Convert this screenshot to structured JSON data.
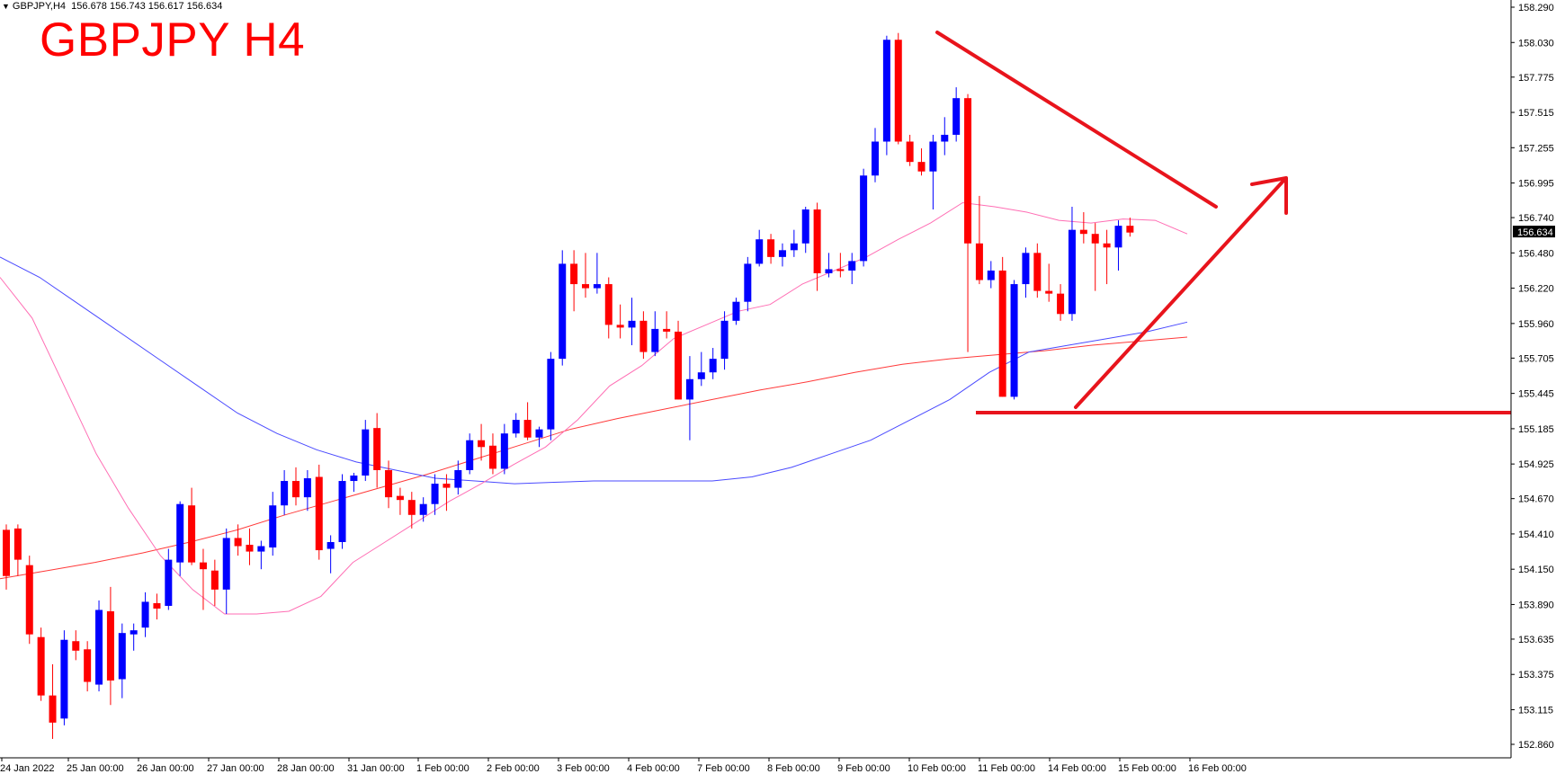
{
  "header": {
    "symbol_line": "GBPJPY,H4",
    "ohlc": "156.678 156.743 156.617 156.634"
  },
  "annotation_title": "GBPJPY H4",
  "colors": {
    "bull": "#0000ff",
    "bear": "#ff0000",
    "ma_fast": "#ff6eb4",
    "ma_mid": "#4a4aff",
    "ma_slow": "#ff3a3a",
    "drawing": "#e8141c",
    "grid": "none"
  },
  "chart_data": {
    "type": "candlestick",
    "title": "GBPJPY H4",
    "symbol": "GBPJPY",
    "timeframe": "H4",
    "grid": false,
    "ylim": [
      152.66,
      158.34
    ],
    "y_ticks": [
      "158.290",
      "158.030",
      "157.775",
      "157.515",
      "157.255",
      "156.995",
      "156.740",
      "156.480",
      "156.220",
      "155.960",
      "155.705",
      "155.445",
      "155.185",
      "154.925",
      "154.670",
      "154.410",
      "154.150",
      "153.890",
      "153.635",
      "153.375",
      "153.115",
      "152.860"
    ],
    "x_ticks": [
      "24 Jan 2022",
      "25 Jan 00:00",
      "26 Jan 00:00",
      "27 Jan 00:00",
      "28 Jan 00:00",
      "31 Jan 00:00",
      "1 Feb 00:00",
      "2 Feb 00:00",
      "3 Feb 00:00",
      "4 Feb 00:00",
      "7 Feb 00:00",
      "8 Feb 00:00",
      "9 Feb 00:00",
      "10 Feb 00:00",
      "11 Feb 00:00",
      "14 Feb 00:00",
      "15 Feb 00:00",
      "16 Feb 00:00"
    ],
    "current_price": "156.634",
    "ohlc": [
      [
        154.44,
        154.48,
        154.0,
        154.1
      ],
      [
        154.45,
        154.48,
        154.1,
        154.22
      ],
      [
        154.18,
        154.25,
        153.6,
        153.67
      ],
      [
        153.65,
        153.72,
        153.18,
        153.22
      ],
      [
        153.22,
        153.45,
        152.9,
        153.02
      ],
      [
        153.05,
        153.7,
        153.0,
        153.63
      ],
      [
        153.62,
        153.7,
        153.48,
        153.55
      ],
      [
        153.56,
        153.62,
        153.25,
        153.32
      ],
      [
        153.3,
        153.92,
        153.25,
        153.85
      ],
      [
        153.84,
        154.02,
        153.15,
        153.33
      ],
      [
        153.34,
        153.75,
        153.2,
        153.68
      ],
      [
        153.67,
        153.75,
        153.55,
        153.7
      ],
      [
        153.72,
        153.98,
        153.65,
        153.91
      ],
      [
        153.9,
        153.97,
        153.78,
        153.86
      ],
      [
        153.88,
        154.3,
        153.85,
        154.22
      ],
      [
        154.2,
        154.65,
        154.1,
        154.63
      ],
      [
        154.62,
        154.75,
        154.18,
        154.2
      ],
      [
        154.2,
        154.3,
        153.85,
        154.15
      ],
      [
        154.14,
        154.22,
        153.88,
        154.0
      ],
      [
        154.0,
        154.45,
        153.82,
        154.38
      ],
      [
        154.38,
        154.48,
        154.25,
        154.32
      ],
      [
        154.33,
        154.45,
        154.18,
        154.28
      ],
      [
        154.28,
        154.36,
        154.15,
        154.32
      ],
      [
        154.31,
        154.72,
        154.25,
        154.62
      ],
      [
        154.62,
        154.88,
        154.55,
        154.8
      ],
      [
        154.8,
        154.9,
        154.62,
        154.68
      ],
      [
        154.68,
        154.88,
        154.58,
        154.82
      ],
      [
        154.83,
        154.92,
        154.22,
        154.29
      ],
      [
        154.3,
        154.4,
        154.12,
        154.35
      ],
      [
        154.35,
        154.85,
        154.3,
        154.8
      ],
      [
        154.8,
        154.86,
        154.72,
        154.84
      ],
      [
        154.84,
        155.25,
        154.8,
        155.18
      ],
      [
        155.19,
        155.3,
        154.75,
        154.88
      ],
      [
        154.88,
        154.95,
        154.6,
        154.68
      ],
      [
        154.69,
        154.75,
        154.55,
        154.66
      ],
      [
        154.66,
        154.72,
        154.45,
        154.55
      ],
      [
        154.55,
        154.68,
        154.5,
        154.63
      ],
      [
        154.63,
        154.85,
        154.55,
        154.78
      ],
      [
        154.78,
        154.85,
        154.58,
        154.75
      ],
      [
        154.75,
        154.95,
        154.7,
        154.88
      ],
      [
        154.88,
        155.15,
        154.85,
        155.1
      ],
      [
        155.1,
        155.22,
        154.95,
        155.05
      ],
      [
        155.06,
        155.15,
        154.85,
        154.89
      ],
      [
        154.89,
        155.22,
        154.85,
        155.15
      ],
      [
        155.15,
        155.3,
        155.12,
        155.25
      ],
      [
        155.25,
        155.38,
        155.1,
        155.12
      ],
      [
        155.12,
        155.2,
        155.05,
        155.18
      ],
      [
        155.18,
        155.75,
        155.1,
        155.7
      ],
      [
        155.7,
        156.5,
        155.65,
        156.4
      ],
      [
        156.4,
        156.5,
        156.05,
        156.25
      ],
      [
        156.25,
        156.48,
        156.15,
        156.22
      ],
      [
        156.22,
        156.48,
        156.18,
        156.25
      ],
      [
        156.25,
        156.3,
        155.85,
        155.95
      ],
      [
        155.95,
        156.1,
        155.85,
        155.93
      ],
      [
        155.93,
        156.15,
        155.8,
        155.98
      ],
      [
        155.98,
        156.05,
        155.7,
        155.75
      ],
      [
        155.75,
        156.05,
        155.72,
        155.92
      ],
      [
        155.92,
        156.05,
        155.85,
        155.9
      ],
      [
        155.9,
        155.98,
        155.4,
        155.4
      ],
      [
        155.4,
        155.72,
        155.1,
        155.55
      ],
      [
        155.55,
        155.75,
        155.5,
        155.6
      ],
      [
        155.6,
        155.78,
        155.55,
        155.7
      ],
      [
        155.7,
        156.05,
        155.62,
        155.98
      ],
      [
        155.98,
        156.15,
        155.95,
        156.12
      ],
      [
        156.12,
        156.45,
        156.05,
        156.4
      ],
      [
        156.4,
        156.65,
        156.38,
        156.58
      ],
      [
        156.58,
        156.62,
        156.4,
        156.45
      ],
      [
        156.45,
        156.55,
        156.38,
        156.5
      ],
      [
        156.5,
        156.65,
        156.45,
        156.55
      ],
      [
        156.55,
        156.82,
        156.48,
        156.8
      ],
      [
        156.8,
        156.85,
        156.2,
        156.33
      ],
      [
        156.33,
        156.48,
        156.3,
        156.36
      ],
      [
        156.36,
        156.48,
        156.3,
        156.35
      ],
      [
        156.35,
        156.48,
        156.25,
        156.42
      ],
      [
        156.42,
        157.1,
        156.38,
        157.05
      ],
      [
        157.05,
        157.4,
        157.0,
        157.3
      ],
      [
        157.3,
        158.08,
        157.2,
        158.05
      ],
      [
        158.05,
        158.1,
        157.28,
        157.3
      ],
      [
        157.3,
        157.35,
        157.12,
        157.15
      ],
      [
        157.15,
        157.25,
        157.05,
        157.08
      ],
      [
        157.08,
        157.35,
        156.8,
        157.3
      ],
      [
        157.3,
        157.48,
        157.2,
        157.35
      ],
      [
        157.35,
        157.7,
        157.3,
        157.62
      ],
      [
        157.62,
        157.65,
        155.75,
        156.55
      ],
      [
        156.55,
        156.9,
        156.25,
        156.28
      ],
      [
        156.28,
        156.42,
        156.22,
        156.35
      ],
      [
        156.35,
        156.45,
        155.42,
        155.42
      ],
      [
        155.42,
        156.28,
        155.4,
        156.25
      ],
      [
        156.25,
        156.52,
        156.15,
        156.48
      ],
      [
        156.48,
        156.55,
        156.15,
        156.2
      ],
      [
        156.2,
        156.4,
        156.12,
        156.18
      ],
      [
        156.18,
        156.25,
        155.98,
        156.03
      ],
      [
        156.03,
        156.82,
        155.98,
        156.65
      ],
      [
        156.65,
        156.78,
        156.55,
        156.62
      ],
      [
        156.62,
        156.7,
        156.2,
        156.55
      ],
      [
        156.55,
        156.65,
        156.25,
        156.52
      ],
      [
        156.52,
        156.72,
        156.35,
        156.68
      ],
      [
        156.68,
        156.74,
        156.6,
        156.63
      ]
    ],
    "ma_fast": [
      156.3,
      156.0,
      155.5,
      155.0,
      154.6,
      154.25,
      154.0,
      153.82,
      153.82,
      153.84,
      153.95,
      154.2,
      154.35,
      154.5,
      154.65,
      154.78,
      154.92,
      155.05,
      155.25,
      155.5,
      155.65,
      155.85,
      155.95,
      156.05,
      156.1,
      156.25,
      156.35,
      156.45,
      156.58,
      156.7,
      156.85,
      156.82,
      156.78,
      156.72,
      156.7,
      156.73,
      156.72,
      156.62
    ],
    "ma_mid": [
      156.45,
      156.3,
      156.1,
      155.9,
      155.7,
      155.5,
      155.3,
      155.15,
      155.03,
      154.94,
      154.88,
      154.82,
      154.8,
      154.78,
      154.79,
      154.8,
      154.8,
      154.8,
      154.8,
      154.83,
      154.9,
      155.0,
      155.1,
      155.25,
      155.4,
      155.6,
      155.75,
      155.8,
      155.85,
      155.9,
      155.97
    ],
    "ma_slow": [
      154.08,
      154.14,
      154.2,
      154.27,
      154.35,
      154.44,
      154.55,
      154.65,
      154.75,
      154.85,
      154.96,
      155.07,
      155.18,
      155.26,
      155.33,
      155.4,
      155.47,
      155.53,
      155.6,
      155.66,
      155.7,
      155.73,
      155.76,
      155.8,
      155.83,
      155.86
    ]
  }
}
